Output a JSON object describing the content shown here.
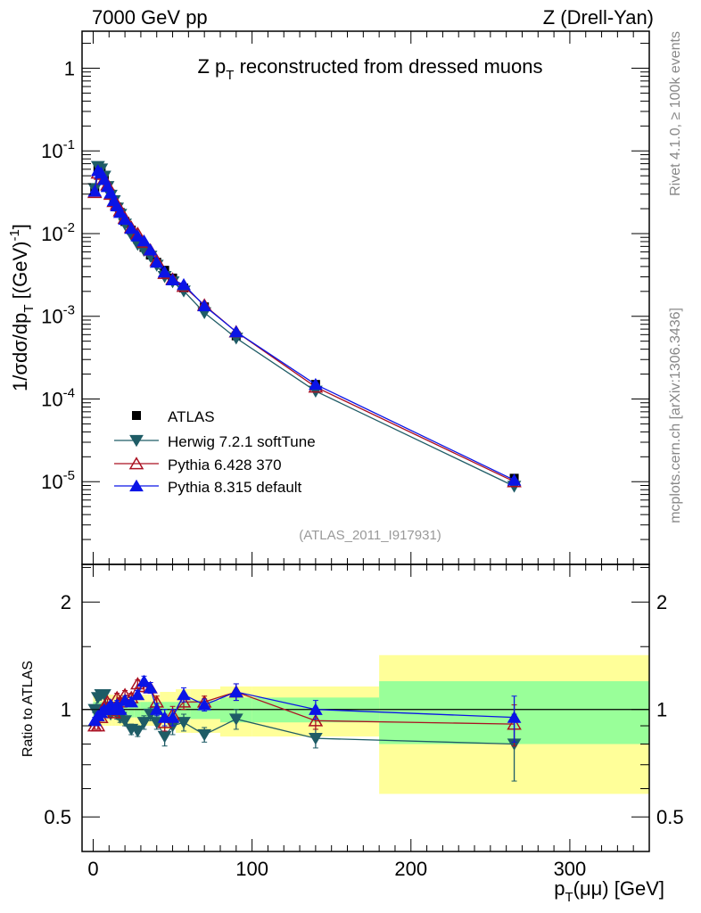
{
  "header": {
    "left": "7000 GeV pp",
    "right": "Z (Drell-Yan)"
  },
  "side_text": {
    "rivet": "Rivet 4.1.0, ≥ 100k events",
    "mcplots": "mcplots.cern.ch [arXiv:1306.3436]"
  },
  "chart_data": {
    "type": "line",
    "title": "Z p_T reconstructed from dressed muons",
    "watermark": "(ATLAS_2011_I917931)",
    "xlabel": "p_T(μμ) [GeV]",
    "ylabel": "1/σdσ/dp_T [(GeV)^-1]",
    "ratio_ylabel": "Ratio to ATLAS",
    "xlim": [
      -7,
      350
    ],
    "ylim": [
      1e-06,
      2.8
    ],
    "yscale": "log",
    "ratio_ylim": [
      0.4,
      2.55
    ],
    "x_ticks": [
      "0",
      "100",
      "200",
      "300"
    ],
    "y_ticks": [
      {
        "v": 1,
        "label": "1"
      },
      {
        "v": 0.1,
        "label": "10^-1"
      },
      {
        "v": 0.01,
        "label": "10^-2"
      },
      {
        "v": 0.001,
        "label": "10^-3"
      },
      {
        "v": 0.0001,
        "label": "10^-4"
      },
      {
        "v": 1e-05,
        "label": "10^-5"
      }
    ],
    "ratio_ticks": [
      {
        "v": 2,
        "label": "2"
      },
      {
        "v": 1,
        "label": "1"
      },
      {
        "v": 0.5,
        "label": "0.5"
      }
    ],
    "x": [
      1,
      3,
      5,
      7,
      9,
      11,
      13,
      15,
      17,
      20,
      24,
      28,
      32,
      36,
      40,
      45,
      50,
      57,
      70,
      90,
      140,
      265
    ],
    "bin_edges": [
      0,
      2,
      4,
      6,
      8,
      10,
      12,
      14,
      16,
      18,
      22,
      26,
      30,
      34,
      38,
      42,
      48,
      52,
      61,
      80,
      100,
      180,
      350
    ],
    "data": {
      "name": "ATLAS",
      "values": [
        0.035,
        0.06,
        0.055,
        0.045,
        0.037,
        0.03,
        0.025,
        0.021,
        0.018,
        0.014,
        0.011,
        0.0085,
        0.0068,
        0.0055,
        0.0045,
        0.0036,
        0.0029,
        0.0022,
        0.0013,
        0.00058,
        0.00015,
        1.1e-05
      ],
      "stat_band": [
        0.05,
        0.05,
        0.05,
        0.05,
        0.05,
        0.05,
        0.05,
        0.05,
        0.05,
        0.05,
        0.05,
        0.05,
        0.05,
        0.05,
        0.05,
        0.05,
        0.05,
        0.05,
        0.06,
        0.08,
        0.08,
        0.2
      ],
      "total_band": [
        0.1,
        0.1,
        0.1,
        0.1,
        0.1,
        0.1,
        0.1,
        0.1,
        0.1,
        0.1,
        0.1,
        0.1,
        0.1,
        0.1,
        0.1,
        0.12,
        0.12,
        0.14,
        0.14,
        0.16,
        0.16,
        0.42
      ]
    },
    "series": [
      {
        "name": "Herwig 7.2.1 softTune",
        "color": "#1f5c66",
        "marker": "triangle-down-filled",
        "ratio": [
          1.0,
          1.08,
          1.1,
          1.1,
          1.0,
          0.97,
          1.0,
          0.97,
          0.95,
          0.93,
          0.88,
          0.87,
          0.92,
          0.97,
          0.92,
          0.84,
          0.9,
          0.92,
          0.85,
          0.94,
          0.83,
          0.8
        ],
        "ratio_err": [
          0.02,
          0.02,
          0.02,
          0.02,
          0.02,
          0.02,
          0.02,
          0.03,
          0.03,
          0.03,
          0.03,
          0.03,
          0.04,
          0.04,
          0.04,
          0.05,
          0.05,
          0.05,
          0.04,
          0.06,
          0.05,
          0.17
        ]
      },
      {
        "name": "Pythia 6.428 370",
        "color": "#aa1122",
        "marker": "triangle-up-open",
        "ratio": [
          0.9,
          0.9,
          0.95,
          1.02,
          1.05,
          1.0,
          0.98,
          1.08,
          1.05,
          1.1,
          1.08,
          1.18,
          1.16,
          1.15,
          1.05,
          0.92,
          0.97,
          1.05,
          1.05,
          1.12,
          0.93,
          0.91
        ],
        "ratio_err": [
          0.02,
          0.02,
          0.02,
          0.02,
          0.02,
          0.02,
          0.02,
          0.03,
          0.03,
          0.03,
          0.03,
          0.03,
          0.04,
          0.04,
          0.04,
          0.05,
          0.05,
          0.05,
          0.04,
          0.06,
          0.05,
          0.12
        ]
      },
      {
        "name": "Pythia 8.315 default",
        "color": "#0a14e6",
        "marker": "triangle-up-filled",
        "ratio": [
          0.93,
          0.96,
          0.98,
          1.0,
          1.0,
          1.03,
          1.0,
          1.03,
          1.0,
          1.06,
          1.05,
          1.1,
          1.2,
          1.15,
          1.0,
          0.95,
          0.95,
          1.1,
          1.03,
          1.12,
          1.0,
          0.95
        ],
        "ratio_err": [
          0.02,
          0.02,
          0.02,
          0.02,
          0.02,
          0.02,
          0.02,
          0.03,
          0.03,
          0.03,
          0.03,
          0.03,
          0.04,
          0.04,
          0.04,
          0.05,
          0.05,
          0.05,
          0.04,
          0.06,
          0.06,
          0.14
        ]
      }
    ],
    "legend": {
      "placement": "lower-left",
      "entries": [
        "ATLAS",
        "Herwig 7.2.1 softTune",
        "Pythia 6.428 370",
        "Pythia 8.315 default"
      ]
    }
  }
}
